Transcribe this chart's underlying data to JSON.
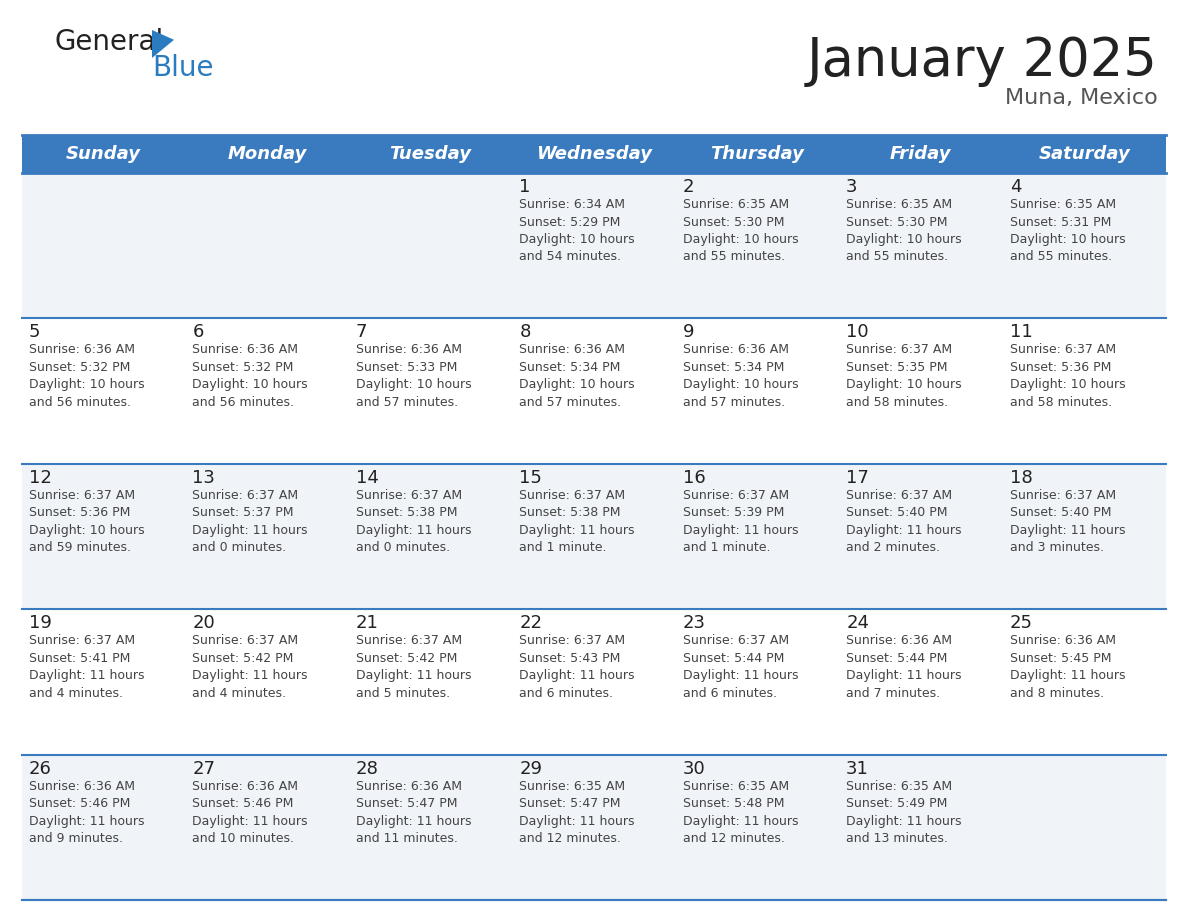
{
  "title": "January 2025",
  "subtitle": "Muna, Mexico",
  "days_of_week": [
    "Sunday",
    "Monday",
    "Tuesday",
    "Wednesday",
    "Thursday",
    "Friday",
    "Saturday"
  ],
  "header_bg": "#3a7abf",
  "header_text": "#ffffff",
  "row_bg_odd": "#f0f4f8",
  "row_bg_even": "#ffffff",
  "cell_text_color": "#444444",
  "day_num_color": "#222222",
  "border_color": "#3a7abf",
  "title_color": "#222222",
  "subtitle_color": "#555555",
  "logo_general_color": "#222222",
  "logo_blue_color": "#2a7bbf",
  "calendar": [
    [
      {
        "day": null,
        "info": ""
      },
      {
        "day": null,
        "info": ""
      },
      {
        "day": null,
        "info": ""
      },
      {
        "day": 1,
        "info": "Sunrise: 6:34 AM\nSunset: 5:29 PM\nDaylight: 10 hours\nand 54 minutes."
      },
      {
        "day": 2,
        "info": "Sunrise: 6:35 AM\nSunset: 5:30 PM\nDaylight: 10 hours\nand 55 minutes."
      },
      {
        "day": 3,
        "info": "Sunrise: 6:35 AM\nSunset: 5:30 PM\nDaylight: 10 hours\nand 55 minutes."
      },
      {
        "day": 4,
        "info": "Sunrise: 6:35 AM\nSunset: 5:31 PM\nDaylight: 10 hours\nand 55 minutes."
      }
    ],
    [
      {
        "day": 5,
        "info": "Sunrise: 6:36 AM\nSunset: 5:32 PM\nDaylight: 10 hours\nand 56 minutes."
      },
      {
        "day": 6,
        "info": "Sunrise: 6:36 AM\nSunset: 5:32 PM\nDaylight: 10 hours\nand 56 minutes."
      },
      {
        "day": 7,
        "info": "Sunrise: 6:36 AM\nSunset: 5:33 PM\nDaylight: 10 hours\nand 57 minutes."
      },
      {
        "day": 8,
        "info": "Sunrise: 6:36 AM\nSunset: 5:34 PM\nDaylight: 10 hours\nand 57 minutes."
      },
      {
        "day": 9,
        "info": "Sunrise: 6:36 AM\nSunset: 5:34 PM\nDaylight: 10 hours\nand 57 minutes."
      },
      {
        "day": 10,
        "info": "Sunrise: 6:37 AM\nSunset: 5:35 PM\nDaylight: 10 hours\nand 58 minutes."
      },
      {
        "day": 11,
        "info": "Sunrise: 6:37 AM\nSunset: 5:36 PM\nDaylight: 10 hours\nand 58 minutes."
      }
    ],
    [
      {
        "day": 12,
        "info": "Sunrise: 6:37 AM\nSunset: 5:36 PM\nDaylight: 10 hours\nand 59 minutes."
      },
      {
        "day": 13,
        "info": "Sunrise: 6:37 AM\nSunset: 5:37 PM\nDaylight: 11 hours\nand 0 minutes."
      },
      {
        "day": 14,
        "info": "Sunrise: 6:37 AM\nSunset: 5:38 PM\nDaylight: 11 hours\nand 0 minutes."
      },
      {
        "day": 15,
        "info": "Sunrise: 6:37 AM\nSunset: 5:38 PM\nDaylight: 11 hours\nand 1 minute."
      },
      {
        "day": 16,
        "info": "Sunrise: 6:37 AM\nSunset: 5:39 PM\nDaylight: 11 hours\nand 1 minute."
      },
      {
        "day": 17,
        "info": "Sunrise: 6:37 AM\nSunset: 5:40 PM\nDaylight: 11 hours\nand 2 minutes."
      },
      {
        "day": 18,
        "info": "Sunrise: 6:37 AM\nSunset: 5:40 PM\nDaylight: 11 hours\nand 3 minutes."
      }
    ],
    [
      {
        "day": 19,
        "info": "Sunrise: 6:37 AM\nSunset: 5:41 PM\nDaylight: 11 hours\nand 4 minutes."
      },
      {
        "day": 20,
        "info": "Sunrise: 6:37 AM\nSunset: 5:42 PM\nDaylight: 11 hours\nand 4 minutes."
      },
      {
        "day": 21,
        "info": "Sunrise: 6:37 AM\nSunset: 5:42 PM\nDaylight: 11 hours\nand 5 minutes."
      },
      {
        "day": 22,
        "info": "Sunrise: 6:37 AM\nSunset: 5:43 PM\nDaylight: 11 hours\nand 6 minutes."
      },
      {
        "day": 23,
        "info": "Sunrise: 6:37 AM\nSunset: 5:44 PM\nDaylight: 11 hours\nand 6 minutes."
      },
      {
        "day": 24,
        "info": "Sunrise: 6:36 AM\nSunset: 5:44 PM\nDaylight: 11 hours\nand 7 minutes."
      },
      {
        "day": 25,
        "info": "Sunrise: 6:36 AM\nSunset: 5:45 PM\nDaylight: 11 hours\nand 8 minutes."
      }
    ],
    [
      {
        "day": 26,
        "info": "Sunrise: 6:36 AM\nSunset: 5:46 PM\nDaylight: 11 hours\nand 9 minutes."
      },
      {
        "day": 27,
        "info": "Sunrise: 6:36 AM\nSunset: 5:46 PM\nDaylight: 11 hours\nand 10 minutes."
      },
      {
        "day": 28,
        "info": "Sunrise: 6:36 AM\nSunset: 5:47 PM\nDaylight: 11 hours\nand 11 minutes."
      },
      {
        "day": 29,
        "info": "Sunrise: 6:35 AM\nSunset: 5:47 PM\nDaylight: 11 hours\nand 12 minutes."
      },
      {
        "day": 30,
        "info": "Sunrise: 6:35 AM\nSunset: 5:48 PM\nDaylight: 11 hours\nand 12 minutes."
      },
      {
        "day": 31,
        "info": "Sunrise: 6:35 AM\nSunset: 5:49 PM\nDaylight: 11 hours\nand 13 minutes."
      },
      {
        "day": null,
        "info": ""
      }
    ]
  ]
}
